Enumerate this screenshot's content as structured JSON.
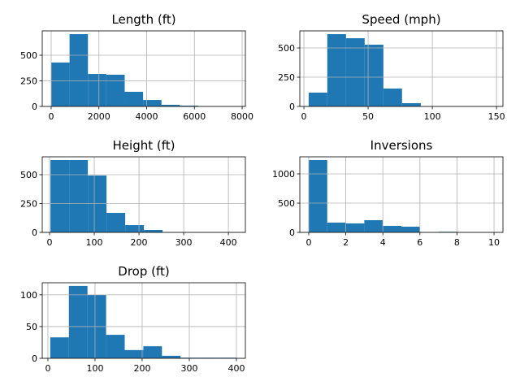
{
  "chart_data": [
    {
      "type": "histogram",
      "title": "Length (ft)",
      "color": "#1f77b4",
      "grid": true,
      "bins": [
        0,
        770,
        1540,
        2310,
        3080,
        3850,
        4620,
        5390,
        6160,
        6930,
        7700
      ],
      "values": [
        429,
        706,
        317,
        310,
        143,
        63,
        16,
        8,
        2,
        1
      ],
      "xlim": [
        -374,
        8135
      ],
      "xticks": [
        0,
        2000,
        4000,
        6000,
        8000
      ],
      "ylim": [
        0,
        738
      ],
      "yticks": [
        0,
        250,
        500
      ]
    },
    {
      "type": "histogram",
      "title": "Speed (mph)",
      "color": "#1f77b4",
      "grid": true,
      "bins": [
        3.7,
        18.2,
        32.8,
        47.3,
        61.9,
        76.4,
        91.0,
        105.5,
        120.1,
        134.6,
        149.1
      ],
      "values": [
        118,
        618,
        583,
        528,
        153,
        28,
        0,
        0,
        0,
        1
      ],
      "xlim": [
        -3.2,
        155
      ],
      "xticks": [
        0,
        50,
        100,
        150
      ],
      "ylim": [
        0,
        646
      ],
      "yticks": [
        0,
        250,
        500
      ]
    },
    {
      "type": "histogram",
      "title": "Height (ft)",
      "color": "#1f77b4",
      "grid": true,
      "bins": [
        2,
        43.8,
        85.6,
        127.4,
        169.2,
        211,
        252.8,
        294.6,
        336.4,
        378.2,
        420
      ],
      "values": [
        627,
        627,
        493,
        169,
        63,
        21,
        0,
        0,
        0,
        1
      ],
      "xlim": [
        -16.4,
        438
      ],
      "xticks": [
        0,
        100,
        200,
        300,
        400
      ],
      "ylim": [
        0,
        655
      ],
      "yticks": [
        0,
        250,
        500
      ]
    },
    {
      "type": "histogram",
      "title": "Inversions",
      "color": "#1f77b4",
      "grid": true,
      "bins": [
        0,
        1,
        2,
        3,
        4,
        5,
        6,
        7,
        8,
        9,
        10
      ],
      "values": [
        1236,
        167,
        153,
        208,
        111,
        97,
        0,
        10,
        2,
        1
      ],
      "xlim": [
        -0.48,
        10.48
      ],
      "xticks": [
        0,
        2,
        4,
        6,
        8,
        10
      ],
      "ylim": [
        0,
        1292
      ],
      "yticks": [
        0,
        500,
        1000
      ]
    },
    {
      "type": "histogram",
      "title": "Drop (ft)",
      "color": "#1f77b4",
      "grid": true,
      "bins": [
        5,
        44.5,
        84,
        123.5,
        163,
        202.5,
        242,
        281.5,
        321,
        360.5,
        400
      ],
      "values": [
        33,
        114,
        100,
        37,
        13,
        19,
        4,
        1,
        1,
        1
      ],
      "xlim": [
        -12,
        419
      ],
      "xticks": [
        0,
        100,
        200,
        300,
        400
      ],
      "ylim": [
        0,
        119
      ],
      "yticks": [
        0,
        50,
        100
      ]
    }
  ]
}
